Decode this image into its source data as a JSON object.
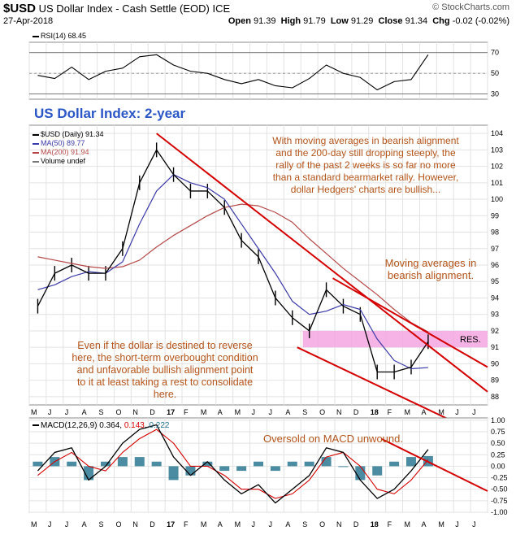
{
  "header": {
    "symbol": "$USD",
    "name": "US Dollar Index - Cash Settle (EOD)",
    "exchange": "ICE",
    "date": "27-Apr-2018",
    "open_label": "Open",
    "open": "91.39",
    "high_label": "High",
    "high": "91.79",
    "low_label": "Low",
    "low": "91.29",
    "close_label": "Close",
    "close": "91.34",
    "chg_label": "Chg",
    "chg": "-0.02 (-0.02%)",
    "logo": "© StockCharts.com"
  },
  "colors": {
    "price": "#000000",
    "ma50": "#3a3aa8",
    "ma200": "#b54848",
    "trend": "#d40000",
    "resistance": "#f5a6e0",
    "annotation": "#b3541a",
    "title": "#2a56c6",
    "macd_hist": "#1f6f8b"
  },
  "chart_data": [
    {
      "type": "line",
      "name_label": "RSI(14) 68.45",
      "ylim": [
        25,
        80
      ],
      "y_ticks": [
        70,
        50,
        30
      ],
      "x": [
        "May 2016",
        "Jun 2016",
        "Jul 2016",
        "Aug 2016",
        "Sep 2016",
        "Oct 2016",
        "Nov 2016",
        "Dec 2016",
        "Jan 2017",
        "Feb 2017",
        "Mar 2017",
        "Apr 2017",
        "May 2017",
        "Jun 2017",
        "Jul 2017",
        "Aug 2017",
        "Sep 2017",
        "Oct 2017",
        "Nov 2017",
        "Dec 2017",
        "Jan 2018",
        "Feb 2018",
        "Mar 2018",
        "Apr 2018"
      ],
      "series": [
        {
          "name": "RSI(14)",
          "values": [
            48,
            45,
            56,
            44,
            52,
            55,
            66,
            68,
            58,
            52,
            50,
            44,
            40,
            44,
            38,
            36,
            45,
            58,
            50,
            46,
            34,
            42,
            44,
            68
          ]
        }
      ]
    },
    {
      "type": "line",
      "title": "US Dollar Index: 2-year",
      "legend": [
        "$USD (Daily) 91.34",
        "MA(50) 89.77",
        "MA(200) 91.94",
        "Volume undef"
      ],
      "ylim": [
        87.5,
        104.5
      ],
      "y_ticks": [
        104,
        103,
        102,
        101,
        100,
        99,
        98,
        97,
        96,
        95,
        94,
        93,
        92,
        91,
        90,
        89,
        88
      ],
      "x": [
        "May 2016",
        "Jun 2016",
        "Jul 2016",
        "Aug 2016",
        "Sep 2016",
        "Oct 2016",
        "Nov 2016",
        "Dec 2016",
        "Jan 2017",
        "Feb 2017",
        "Mar 2017",
        "Apr 2017",
        "May 2017",
        "Jun 2017",
        "Jul 2017",
        "Aug 2017",
        "Sep 2017",
        "Oct 2017",
        "Nov 2017",
        "Dec 2017",
        "Jan 2018",
        "Feb 2018",
        "Mar 2018",
        "Apr 2018"
      ],
      "series": [
        {
          "name": "$USD",
          "values": [
            93.5,
            95.5,
            96.0,
            95.5,
            95.5,
            97.0,
            101.0,
            103.0,
            101.5,
            100.5,
            100.5,
            99.5,
            97.5,
            96.5,
            94.0,
            92.8,
            92.0,
            94.5,
            93.5,
            93.0,
            89.5,
            89.5,
            89.8,
            91.34
          ]
        },
        {
          "name": "MA(50)",
          "values": [
            94.5,
            94.8,
            95.3,
            95.6,
            95.5,
            96.2,
            98.5,
            100.5,
            101.5,
            101.0,
            100.7,
            100.0,
            98.5,
            97.0,
            95.5,
            93.8,
            93.0,
            93.2,
            93.6,
            93.3,
            91.5,
            90.2,
            89.7,
            89.77
          ]
        },
        {
          "name": "MA(200)",
          "values": [
            96.5,
            96.3,
            96.1,
            95.9,
            95.8,
            95.9,
            96.3,
            97.1,
            97.8,
            98.4,
            99.0,
            99.5,
            99.7,
            99.6,
            99.2,
            98.6,
            97.6,
            96.7,
            95.8,
            95.0,
            94.2,
            93.3,
            92.5,
            91.94
          ]
        }
      ],
      "resistance_zone": [
        91.0,
        92.0
      ],
      "resistance_label": "RES."
    },
    {
      "type": "line",
      "name_label": "MACD(12,26,9)",
      "macd_value": "0.364",
      "signal_value": "0.143",
      "hist_value": "0.222",
      "ylim": [
        -1.0,
        1.05
      ],
      "y_ticks": [
        1.0,
        0.75,
        0.5,
        0.25,
        0.0,
        -0.25,
        -0.5,
        -0.75,
        -1.0
      ],
      "y_tick_labels": [
        "1.00",
        "0.75",
        "0.50",
        "0.25",
        "0.00",
        "-0.25",
        "-0.50",
        "-0.75",
        "-1.00"
      ],
      "x": [
        "May 2016",
        "Jun 2016",
        "Jul 2016",
        "Aug 2016",
        "Sep 2016",
        "Oct 2016",
        "Nov 2016",
        "Dec 2016",
        "Jan 2017",
        "Feb 2017",
        "Mar 2017",
        "Apr 2017",
        "May 2017",
        "Jun 2017",
        "Jul 2017",
        "Aug 2017",
        "Sep 2017",
        "Oct 2017",
        "Nov 2017",
        "Dec 2017",
        "Jan 2018",
        "Feb 2018",
        "Mar 2018",
        "Apr 2018"
      ],
      "series": [
        {
          "name": "MACD",
          "values": [
            -0.1,
            0.3,
            0.4,
            -0.3,
            0.0,
            0.5,
            0.8,
            0.9,
            0.2,
            -0.2,
            0.1,
            -0.3,
            -0.6,
            -0.4,
            -0.8,
            -0.5,
            -0.2,
            0.4,
            0.3,
            -0.3,
            -0.7,
            -0.5,
            -0.1,
            0.364
          ]
        },
        {
          "name": "Signal",
          "values": [
            -0.2,
            0.1,
            0.3,
            0.0,
            -0.1,
            0.3,
            0.6,
            0.8,
            0.5,
            0.0,
            0.0,
            -0.2,
            -0.5,
            -0.5,
            -0.7,
            -0.6,
            -0.3,
            0.2,
            0.3,
            0.0,
            -0.5,
            -0.6,
            -0.3,
            0.143
          ]
        }
      ]
    }
  ],
  "months": [
    "M",
    "J",
    "J",
    "A",
    "S",
    "O",
    "N",
    "D",
    "17",
    "F",
    "M",
    "A",
    "M",
    "J",
    "J",
    "A",
    "S",
    "O",
    "N",
    "D",
    "18",
    "F",
    "M",
    "A",
    "M",
    "J",
    "J"
  ],
  "annotations": {
    "top": [
      "With moving averages in bearish alignment",
      "and the 200-day still dropping steeply, the",
      "rally of the past 2 weeks is so far no more",
      "than a standard bearmarket rally. However,",
      "dollar Hedgers' charts are bullish..."
    ],
    "ma": [
      "Moving averages in",
      "bearish alignment."
    ],
    "bottom": [
      "Even if the dollar is destined to reverse",
      "here, the short-term overbought condition",
      "and unfavorable bullish alignment point",
      "to it at least taking a rest to consolidate",
      "here."
    ],
    "macd": "Oversold on MACD unwound."
  }
}
